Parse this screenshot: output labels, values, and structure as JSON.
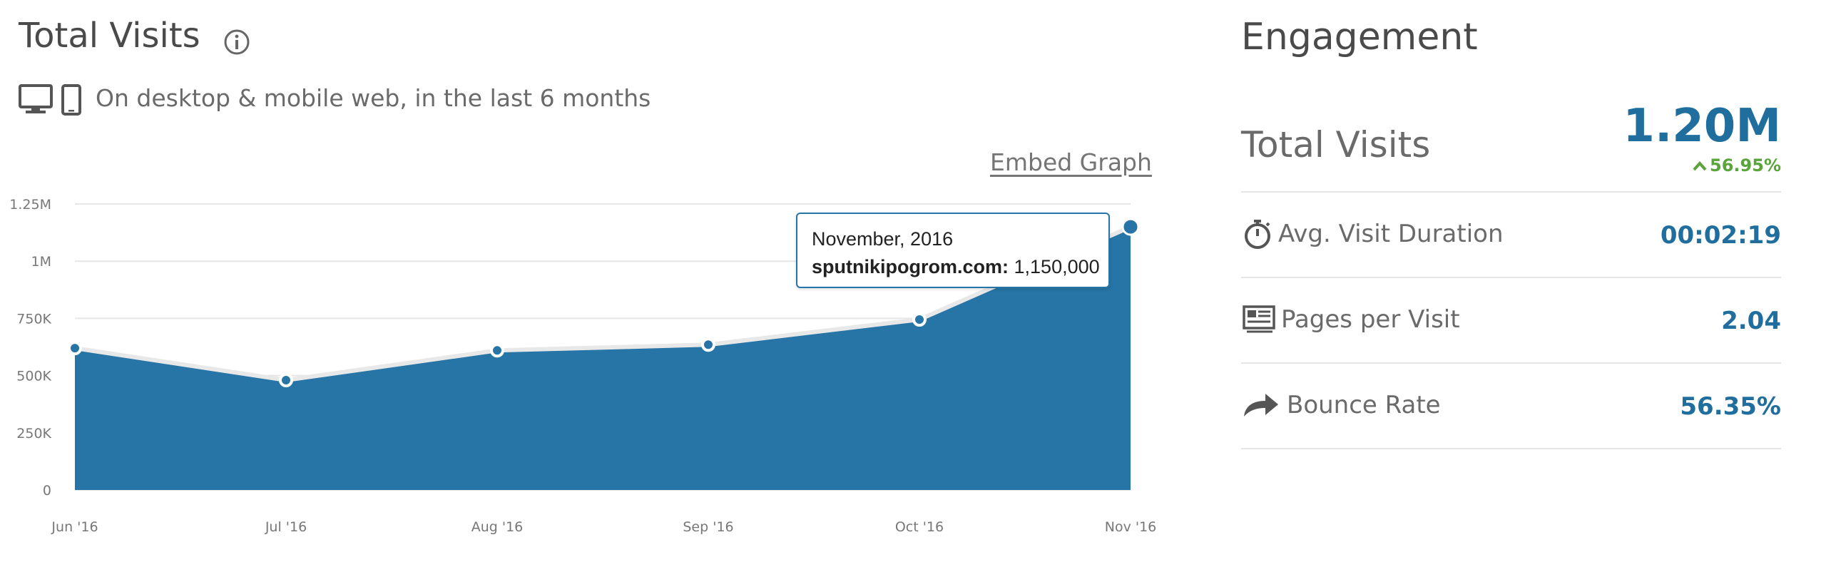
{
  "total_visits": {
    "title": "Total Visits",
    "subtitle": "On desktop & mobile web, in the last 6 months",
    "embed_label": "Embed Graph",
    "icons": [
      "info-icon",
      "desktop-icon",
      "mobile-icon"
    ]
  },
  "tooltip": {
    "date": "November, 2016",
    "site": "sputnikipogrom.com:",
    "value": "1,150,000"
  },
  "chart_data": {
    "type": "area",
    "x": [
      "Jun '16",
      "Jul '16",
      "Aug '16",
      "Sep '16",
      "Oct '16",
      "Nov '16"
    ],
    "series": [
      {
        "values": [
          620000,
          480000,
          610000,
          635000,
          745000,
          1150000
        ]
      }
    ],
    "ylim": [
      0,
      1250000
    ],
    "yticks": [
      0,
      250000,
      500000,
      750000,
      1000000,
      1250000
    ],
    "ytick_labels": [
      "0",
      "250K",
      "500K",
      "750K",
      "1M",
      "1.25M"
    ],
    "grid": true,
    "legend": "none",
    "fill_color": "#2774a6",
    "highlighted_point": "Nov '16"
  },
  "engagement": {
    "title": "Engagement",
    "total_visits_label": "Total Visits",
    "total_visits_value": "1.20M",
    "total_visits_change": "56.95%",
    "metrics": [
      {
        "icon": "stopwatch-icon",
        "label": "Avg. Visit Duration",
        "value": "00:02:19"
      },
      {
        "icon": "pages-icon",
        "label": "Pages per Visit",
        "value": "2.04"
      },
      {
        "icon": "share-arrow-icon",
        "label": "Bounce Rate",
        "value": "56.35%"
      }
    ],
    "colors": {
      "value": "#1f6e9e",
      "positive": "#5aa43c"
    }
  }
}
